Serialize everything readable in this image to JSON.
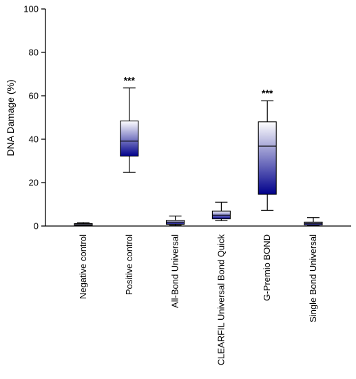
{
  "chart_data": {
    "type": "box",
    "ylabel": "DNA Damage (%)",
    "ylim": [
      0,
      100
    ],
    "yticks": [
      0,
      20,
      40,
      60,
      80,
      100
    ],
    "grid": false,
    "legend": "none",
    "box_gradient": {
      "top_color": "#ffffff",
      "bottom_color": "#00008b"
    },
    "categories": [
      "Negative control",
      "Positive control",
      "All-Bond Universal",
      "CLEARFIL Universal Bond Quick",
      "G-Premio BOND",
      "Single Bond Universal"
    ],
    "boxes": [
      {
        "min": 0.2,
        "q1": 0.3,
        "median": 0.6,
        "q3": 1.1,
        "max": 1.6
      },
      {
        "min": 24.7,
        "q1": 32.2,
        "median": 39.1,
        "q3": 48.4,
        "max": 63.6
      },
      {
        "min": 0.3,
        "q1": 0.8,
        "median": 1.8,
        "q3": 2.6,
        "max": 4.6
      },
      {
        "min": 2.5,
        "q1": 3.3,
        "median": 5.0,
        "q3": 6.9,
        "max": 11.0
      },
      {
        "min": 7.2,
        "q1": 14.6,
        "median": 36.8,
        "q3": 48.0,
        "max": 57.7
      },
      {
        "min": 0.3,
        "q1": 0.5,
        "median": 1.2,
        "q3": 1.8,
        "max": 3.9
      }
    ],
    "annotations": [
      "",
      "***",
      "",
      "",
      "***",
      ""
    ]
  }
}
